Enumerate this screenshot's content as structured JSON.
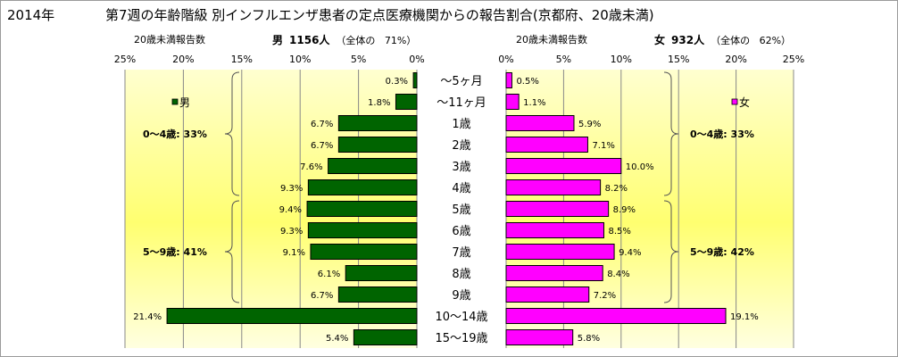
{
  "header": {
    "year": "2014年",
    "title": "第7週の年齢階級 別インフルエンザ患者の定点医療機関からの報告割合(京都府、20歳未満)"
  },
  "male_panel": {
    "subtitle": "20歳未満報告数",
    "sex": "男",
    "count": "1156人",
    "share_prefix": "（全体の",
    "share_value": "71%）",
    "legend": "男",
    "group1": "0〜4歳: 33%",
    "group2": "5〜9歳: 41%"
  },
  "female_panel": {
    "subtitle": "20歳未満報告数",
    "sex": "女",
    "count": "932人",
    "share_prefix": "（全体の",
    "share_value": "62%）",
    "legend": "女",
    "group1": "0〜4歳: 33%",
    "group2": "5〜9歳: 42%"
  },
  "colors": {
    "male": "#006400",
    "female": "#ff00ff",
    "plot_bg_top": "#ffffd4",
    "plot_bg_mid": "#ffff70",
    "border": "#9a9a9a"
  },
  "chart_data": {
    "type": "bar",
    "orientation": "horizontal",
    "layout": "population-pyramid",
    "categories": [
      "〜5ヶ月",
      "〜11ヶ月",
      "1歳",
      "2歳",
      "3歳",
      "4歳",
      "5歳",
      "6歳",
      "7歳",
      "8歳",
      "9歳",
      "10〜14歳",
      "15〜19歳"
    ],
    "series": [
      {
        "name": "男",
        "values": [
          0.3,
          1.8,
          6.7,
          6.7,
          7.6,
          9.3,
          9.4,
          9.3,
          9.1,
          6.1,
          6.7,
          21.4,
          5.4
        ],
        "labels": [
          "0.3%",
          "1.8%",
          "6.7%",
          "6.7%",
          "7.6%",
          "9.3%",
          "9.4%",
          "9.3%",
          "9.1%",
          "6.1%",
          "6.7%",
          "21.4%",
          "5.4%"
        ]
      },
      {
        "name": "女",
        "values": [
          0.5,
          1.1,
          5.9,
          7.1,
          10.0,
          8.2,
          8.9,
          8.5,
          9.4,
          8.4,
          7.2,
          19.1,
          5.8
        ],
        "labels": [
          "0.5%",
          "1.1%",
          "5.9%",
          "7.1%",
          "10.0%",
          "8.2%",
          "8.9%",
          "8.5%",
          "9.4%",
          "8.4%",
          "7.2%",
          "19.1%",
          "5.8%"
        ]
      }
    ],
    "xlim": [
      0,
      25
    ],
    "male_ticks": [
      "25%",
      "20%",
      "15%",
      "10%",
      "5%",
      "0%"
    ],
    "female_ticks": [
      "0%",
      "5%",
      "10%",
      "15%",
      "20%",
      "25%"
    ],
    "tick_values": [
      0,
      5,
      10,
      15,
      20,
      25
    ],
    "grid": true,
    "legend": "inside each panel, upper left"
  }
}
